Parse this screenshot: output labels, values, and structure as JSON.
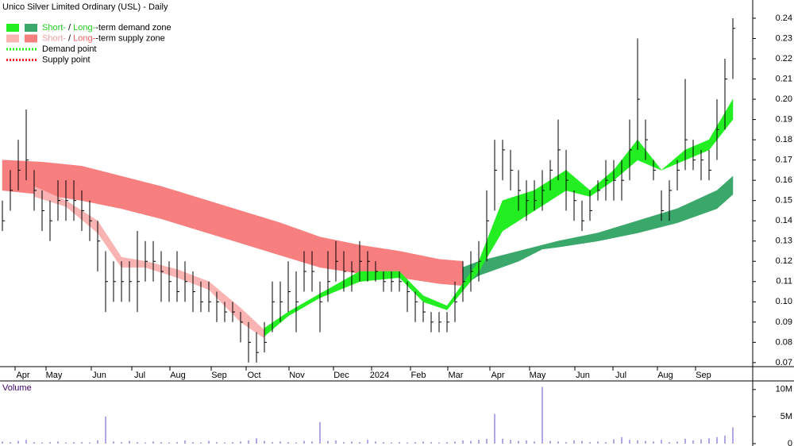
{
  "chart_data": [
    {
      "type": "ohlc",
      "title": "Unico Silver Limited Ordinary (USL) - Daily",
      "color": "#000000",
      "xlim": [
        -0.3,
        94.5
      ],
      "xticks": [
        {
          "value": 2.6,
          "label": "Apr"
        },
        {
          "value": 6.5,
          "label": "May"
        },
        {
          "value": 12.2,
          "label": "Jun"
        },
        {
          "value": 17.3,
          "label": "Jul"
        },
        {
          "value": 22.1,
          "label": "Aug"
        },
        {
          "value": 27.3,
          "label": "Sep"
        },
        {
          "value": 31.7,
          "label": "Oct"
        },
        {
          "value": 37.1,
          "label": "Nov"
        },
        {
          "value": 42.7,
          "label": "Dec"
        },
        {
          "value": 47.5,
          "label": "2024"
        },
        {
          "value": 52.4,
          "label": "Feb"
        },
        {
          "value": 57.1,
          "label": "Mar"
        },
        {
          "value": 62.4,
          "label": "Apr"
        },
        {
          "value": 67.4,
          "label": "May"
        },
        {
          "value": 73.1,
          "label": "Jun"
        },
        {
          "value": 77.9,
          "label": "Jul"
        },
        {
          "value": 83.5,
          "label": "Aug"
        },
        {
          "value": 88.3,
          "label": "Sep"
        }
      ],
      "ylim": [
        0.068,
        0.249
      ],
      "yticks": [
        0.07,
        0.08,
        0.09,
        {
          "value": 0.1,
          "label": "0.10"
        },
        0.11,
        0.12,
        0.13,
        0.14,
        0.15,
        0.16,
        0.17,
        0.18,
        0.19,
        {
          "value": 0.2,
          "label": "0.20"
        },
        0.21,
        0.22,
        0.23,
        0.24
      ],
      "high": [
        0.15,
        0.165,
        0.18,
        0.195,
        0.165,
        0.155,
        0.15,
        0.16,
        0.16,
        0.16,
        0.155,
        0.15,
        0.14,
        0.125,
        0.12,
        0.12,
        0.12,
        0.135,
        0.13,
        0.13,
        0.125,
        0.12,
        0.125,
        0.12,
        0.115,
        0.11,
        0.11,
        0.105,
        0.1,
        0.1,
        0.095,
        0.09,
        0.085,
        0.09,
        0.11,
        0.11,
        0.12,
        0.115,
        0.125,
        0.125,
        0.11,
        0.125,
        0.13,
        0.125,
        0.12,
        0.13,
        0.125,
        0.12,
        0.115,
        0.115,
        0.115,
        0.11,
        0.105,
        0.1,
        0.095,
        0.095,
        0.095,
        0.11,
        0.12,
        0.125,
        0.13,
        0.155,
        0.18,
        0.18,
        0.175,
        0.165,
        0.16,
        0.16,
        0.165,
        0.17,
        0.19,
        0.175,
        0.155,
        0.15,
        0.155,
        0.16,
        0.17,
        0.17,
        0.17,
        0.19,
        0.23,
        0.19,
        0.17,
        0.155,
        0.16,
        0.17,
        0.21,
        0.18,
        0.175,
        0.175,
        0.2,
        0.22,
        0.24
      ],
      "low": [
        0.135,
        0.145,
        0.155,
        0.16,
        0.145,
        0.135,
        0.13,
        0.14,
        0.14,
        0.14,
        0.135,
        0.13,
        0.115,
        0.095,
        0.1,
        0.1,
        0.1,
        0.095,
        0.11,
        0.11,
        0.1,
        0.1,
        0.1,
        0.1,
        0.095,
        0.095,
        0.095,
        0.09,
        0.09,
        0.09,
        0.08,
        0.07,
        0.07,
        0.075,
        0.085,
        0.09,
        0.095,
        0.085,
        0.105,
        0.105,
        0.085,
        0.1,
        0.11,
        0.105,
        0.105,
        0.11,
        0.11,
        0.11,
        0.105,
        0.105,
        0.105,
        0.095,
        0.09,
        0.09,
        0.085,
        0.085,
        0.085,
        0.09,
        0.1,
        0.105,
        0.11,
        0.12,
        0.145,
        0.16,
        0.155,
        0.145,
        0.14,
        0.145,
        0.145,
        0.155,
        0.16,
        0.145,
        0.14,
        0.135,
        0.14,
        0.15,
        0.15,
        0.15,
        0.15,
        0.16,
        0.175,
        0.17,
        0.16,
        0.14,
        0.14,
        0.155,
        0.165,
        0.165,
        0.16,
        0.16,
        0.17,
        0.185,
        0.21
      ],
      "close": [
        0.14,
        0.155,
        0.165,
        0.17,
        0.155,
        0.145,
        0.14,
        0.15,
        0.15,
        0.15,
        0.145,
        0.14,
        0.13,
        0.11,
        0.11,
        0.11,
        0.11,
        0.11,
        0.12,
        0.12,
        0.115,
        0.11,
        0.105,
        0.11,
        0.105,
        0.1,
        0.1,
        0.1,
        0.095,
        0.095,
        0.09,
        0.08,
        0.075,
        0.08,
        0.1,
        0.1,
        0.105,
        0.1,
        0.115,
        0.115,
        0.1,
        0.11,
        0.12,
        0.115,
        0.115,
        0.12,
        0.12,
        0.115,
        0.11,
        0.11,
        0.11,
        0.105,
        0.1,
        0.095,
        0.09,
        0.09,
        0.09,
        0.1,
        0.11,
        0.115,
        0.12,
        0.14,
        0.165,
        0.175,
        0.165,
        0.155,
        0.15,
        0.15,
        0.155,
        0.165,
        0.175,
        0.16,
        0.15,
        0.14,
        0.145,
        0.155,
        0.16,
        0.16,
        0.16,
        0.175,
        0.2,
        0.18,
        0.165,
        0.145,
        0.155,
        0.165,
        0.18,
        0.17,
        0.17,
        0.165,
        0.185,
        0.21,
        0.235
      ],
      "zones": [
        {
          "color": "#f77f7f",
          "x": [
            0,
            5,
            10,
            15,
            20,
            25,
            30,
            35,
            40,
            45,
            50,
            55,
            58
          ],
          "upper": [
            0.17,
            0.169,
            0.167,
            0.162,
            0.157,
            0.151,
            0.145,
            0.139,
            0.132,
            0.128,
            0.125,
            0.121,
            0.12
          ],
          "lower": [
            0.155,
            0.153,
            0.15,
            0.146,
            0.141,
            0.135,
            0.129,
            0.123,
            0.117,
            0.114,
            0.112,
            0.109,
            0.108
          ]
        },
        {
          "color": "#3aa86a",
          "x": [
            58,
            60,
            65,
            68,
            70,
            75,
            80,
            85,
            90,
            92
          ],
          "upper": [
            0.117,
            0.12,
            0.125,
            0.128,
            0.13,
            0.134,
            0.14,
            0.146,
            0.155,
            0.162
          ],
          "lower": [
            0.108,
            0.113,
            0.12,
            0.126,
            0.127,
            0.13,
            0.134,
            0.139,
            0.146,
            0.153
          ]
        },
        {
          "color": "#f9b3b3",
          "x": [
            4,
            8,
            12,
            15,
            18,
            22,
            26,
            30,
            33
          ],
          "upper": [
            0.157,
            0.15,
            0.14,
            0.122,
            0.12,
            0.116,
            0.11,
            0.097,
            0.086
          ],
          "lower": [
            0.152,
            0.147,
            0.134,
            0.117,
            0.117,
            0.112,
            0.106,
            0.09,
            0.082
          ]
        },
        {
          "color": "#22ee22",
          "x": [
            33,
            36,
            40,
            45,
            50,
            53,
            56,
            60,
            63,
            67,
            71,
            74,
            77,
            80,
            83,
            86,
            89,
            92
          ],
          "upper": [
            0.087,
            0.095,
            0.104,
            0.115,
            0.115,
            0.103,
            0.098,
            0.12,
            0.15,
            0.155,
            0.165,
            0.155,
            0.165,
            0.18,
            0.165,
            0.175,
            0.18,
            0.2
          ],
          "lower": [
            0.083,
            0.093,
            0.102,
            0.11,
            0.112,
            0.1,
            0.096,
            0.115,
            0.135,
            0.145,
            0.155,
            0.152,
            0.16,
            0.17,
            0.165,
            0.17,
            0.175,
            0.19
          ]
        }
      ],
      "legend": [
        {
          "swatches": [
            "#22ee22",
            "#3aa86a"
          ],
          "parts": [
            {
              "text": "Short-",
              "color": "#22cc22"
            },
            {
              "text": " / "
            },
            {
              "text": "Long-",
              "color": "#22cc22"
            },
            {
              "text": "-term demand zone"
            }
          ]
        },
        {
          "swatches": [
            "#f9b3b3",
            "#f77f7f"
          ],
          "parts": [
            {
              "text": "Short-",
              "color": "#f4a0a0"
            },
            {
              "text": " / "
            },
            {
              "text": "Long-",
              "color": "#f06060"
            },
            {
              "text": "-term supply zone"
            }
          ]
        },
        {
          "dash": "#22ee22",
          "parts": [
            {
              "text": "Demand point"
            }
          ]
        },
        {
          "dash": "#ee2222",
          "parts": [
            {
              "text": "Supply point"
            }
          ]
        }
      ]
    },
    {
      "type": "bar",
      "title": "Volume",
      "color": "#7a6fd0",
      "ylim": [
        0,
        11000000
      ],
      "yticks": [
        0,
        {
          "value": 5000000,
          "label": "5M"
        },
        {
          "value": 10000000,
          "label": "10M"
        }
      ],
      "values": [
        400000,
        300000,
        500000,
        700000,
        300000,
        200000,
        300000,
        400000,
        200000,
        300000,
        300000,
        200000,
        600000,
        5000000,
        400000,
        300000,
        500000,
        300000,
        200000,
        400000,
        300000,
        200000,
        300000,
        600000,
        300000,
        200000,
        500000,
        300000,
        200000,
        300000,
        400000,
        600000,
        1000000,
        500000,
        300000,
        400000,
        300000,
        200000,
        500000,
        400000,
        4000000,
        500000,
        600000,
        300000,
        400000,
        300000,
        700000,
        400000,
        300000,
        200000,
        300000,
        200000,
        300000,
        400000,
        300000,
        200000,
        300000,
        400000,
        600000,
        500000,
        700000,
        900000,
        5500000,
        900000,
        700000,
        500000,
        600000,
        400000,
        10500000,
        500000,
        400000,
        300000,
        600000,
        500000,
        300000,
        400000,
        300000,
        800000,
        1200000,
        700000,
        600000,
        500000,
        400000,
        700000,
        300000,
        400000,
        900000,
        600000,
        800000,
        1000000,
        1200000,
        1500000,
        3000000
      ]
    }
  ]
}
